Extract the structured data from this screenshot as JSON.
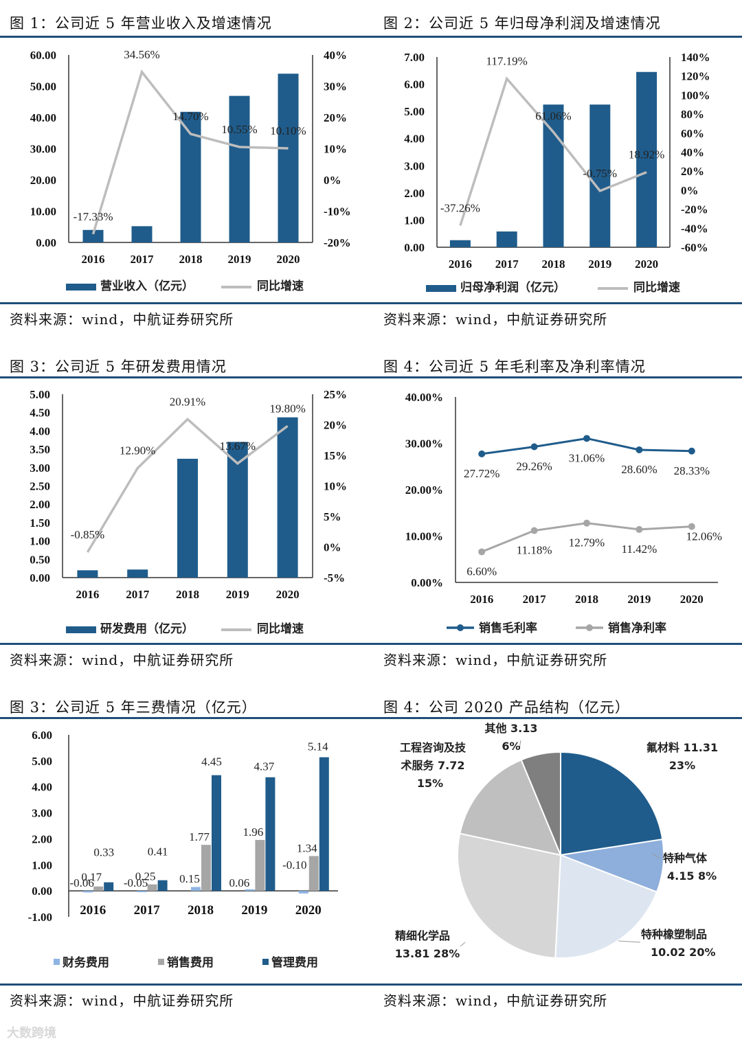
{
  "panels": [
    {
      "title": "图 1：公司近 5 年营业收入及增速情况",
      "source": "资料来源：wind，中航证券研究所"
    },
    {
      "title": "图 2：公司近 5 年归母净利润及增速情况",
      "source": "资料来源：wind，中航证券研究所"
    },
    {
      "title": "图 3：公司近 5 年研发费用情况",
      "source": "资料来源：wind，中航证券研究所"
    },
    {
      "title": "图 4：公司近 5 年毛利率及净利率情况",
      "source": "资料来源：wind，中航证券研究所"
    },
    {
      "title": "图 3：公司近 5 年三费情况（亿元）",
      "source": "资料来源：wind，中航证券研究所"
    },
    {
      "title": "图 4：公司 2020 产品结构（亿元）",
      "source": "资料来源：wind，中航证券研究所"
    }
  ],
  "watermark": "大数跨境",
  "colors": {
    "dark": "#1f5c8b",
    "gray": "#bdbdbd",
    "lightgray": "#a6a6a6",
    "lightblue": "#8eb4e3"
  },
  "chart_data": [
    {
      "type": "bar+line",
      "categories": [
        "2016",
        "2017",
        "2018",
        "2019",
        "2020"
      ],
      "series": [
        {
          "name": "营业收入（亿元）",
          "axis": "left",
          "values": [
            4.0,
            5.2,
            41.8,
            46.9,
            54.0
          ]
        },
        {
          "name": "同比增速",
          "axis": "right",
          "values": [
            -17.33,
            34.56,
            14.7,
            10.55,
            10.1
          ],
          "labels": [
            "-17.33%",
            "34.56%",
            "14.70%",
            "10.55%",
            "10.10%"
          ]
        }
      ],
      "yticks_left": [
        "0.00",
        "10.00",
        "20.00",
        "30.00",
        "40.00",
        "50.00",
        "60.00"
      ],
      "yticks_right": [
        "-20%",
        "-10%",
        "0%",
        "10%",
        "20%",
        "30%",
        "40%"
      ],
      "ylim_left": [
        0,
        60
      ],
      "ylim_right": [
        -20,
        40
      ]
    },
    {
      "type": "bar+line",
      "categories": [
        "2016",
        "2017",
        "2018",
        "2019",
        "2020"
      ],
      "series": [
        {
          "name": "归母净利润（亿元）",
          "axis": "left",
          "values": [
            0.26,
            0.58,
            5.25,
            5.25,
            6.45
          ]
        },
        {
          "name": "同比增速",
          "axis": "right",
          "values": [
            -37.26,
            117.19,
            61.06,
            -0.75,
            18.92
          ],
          "labels": [
            "-37.26%",
            "117.19%",
            "61.06%",
            "-0.75%",
            "18.92%"
          ]
        }
      ],
      "yticks_left": [
        "0.00",
        "1.00",
        "2.00",
        "3.00",
        "4.00",
        "5.00",
        "6.00",
        "7.00"
      ],
      "yticks_right": [
        "-60%",
        "-40%",
        "-20%",
        "0%",
        "20%",
        "40%",
        "60%",
        "80%",
        "100%",
        "120%",
        "140%"
      ],
      "ylim_left": [
        0,
        7
      ],
      "ylim_right": [
        -60,
        140
      ]
    },
    {
      "type": "bar+line",
      "categories": [
        "2016",
        "2017",
        "2018",
        "2019",
        "2020"
      ],
      "series": [
        {
          "name": "研发费用（亿元）",
          "axis": "left",
          "values": [
            0.2,
            0.22,
            3.24,
            3.7,
            4.37
          ]
        },
        {
          "name": "同比增速",
          "axis": "right",
          "values": [
            -0.85,
            12.9,
            20.91,
            13.67,
            19.8
          ],
          "labels": [
            "-0.85%",
            "12.90%",
            "20.91%",
            "13.67%",
            "19.80%"
          ]
        }
      ],
      "yticks_left": [
        "0.00",
        "0.50",
        "1.00",
        "1.50",
        "2.00",
        "2.50",
        "3.00",
        "3.50",
        "4.00",
        "4.50",
        "5.00"
      ],
      "yticks_right": [
        "-5%",
        "0%",
        "5%",
        "10%",
        "15%",
        "20%",
        "25%"
      ],
      "ylim_left": [
        0,
        5
      ],
      "ylim_right": [
        -5,
        25
      ]
    },
    {
      "type": "line",
      "categories": [
        "2016",
        "2017",
        "2018",
        "2019",
        "2020"
      ],
      "series": [
        {
          "name": "销售毛利率",
          "values": [
            27.72,
            29.26,
            31.06,
            28.6,
            28.33
          ],
          "labels": [
            "27.72%",
            "29.26%",
            "31.06%",
            "28.60%",
            "28.33%"
          ]
        },
        {
          "name": "销售净利率",
          "values": [
            6.6,
            11.18,
            12.79,
            11.42,
            12.06
          ],
          "labels": [
            "6.60%",
            "11.18%",
            "12.79%",
            "11.42%",
            "12.06%"
          ]
        }
      ],
      "yticks": [
        "0.00%",
        "10.00%",
        "20.00%",
        "30.00%",
        "40.00%"
      ],
      "ylim": [
        0,
        40
      ]
    },
    {
      "type": "bar",
      "categories": [
        "2016",
        "2017",
        "2018",
        "2019",
        "2020"
      ],
      "series": [
        {
          "name": "财务费用",
          "values": [
            -0.06,
            -0.05,
            0.15,
            0.06,
            -0.1
          ],
          "labels": [
            "-0.06",
            "-0.05",
            "0.15",
            "0.06",
            "-0.10"
          ]
        },
        {
          "name": "销售费用",
          "values": [
            0.17,
            0.25,
            1.77,
            1.96,
            1.34
          ],
          "labels": [
            "0.17",
            "0.25",
            "1.77",
            "1.96",
            "1.34"
          ]
        },
        {
          "name": "管理费用",
          "values": [
            0.33,
            0.41,
            4.45,
            4.37,
            5.14
          ],
          "labels": [
            "0.33",
            "0.41",
            "4.45",
            "4.37",
            "5.14"
          ]
        }
      ],
      "yticks": [
        "-1.00",
        "0.00",
        "1.00",
        "2.00",
        "3.00",
        "4.00",
        "5.00",
        "6.00"
      ],
      "ylim": [
        -1,
        6
      ]
    },
    {
      "type": "pie",
      "slices": [
        {
          "name": "氟材料",
          "value": 11.31,
          "percent": "23%",
          "label1": "氟材料 11.31",
          "label2": "23%"
        },
        {
          "name": "特种气体",
          "value": 4.15,
          "percent": "8%",
          "label1": "特种气体",
          "label2": "4.15 8%"
        },
        {
          "name": "特种橡塑制品",
          "value": 10.02,
          "percent": "20%",
          "label1": "特种橡塑制品",
          "label2": "10.02 20%"
        },
        {
          "name": "精细化学品",
          "value": 13.81,
          "percent": "28%",
          "label1": "精细化学品",
          "label2": "13.81 28%"
        },
        {
          "name": "工程咨询及技术服务",
          "value": 7.72,
          "percent": "15%",
          "label1": "工程咨询及技",
          "label2": "术服务 7.72",
          "label3": "15%"
        },
        {
          "name": "其他",
          "value": 3.13,
          "percent": "6%",
          "label1": "其他 3.13",
          "label2": "6%"
        }
      ]
    }
  ]
}
